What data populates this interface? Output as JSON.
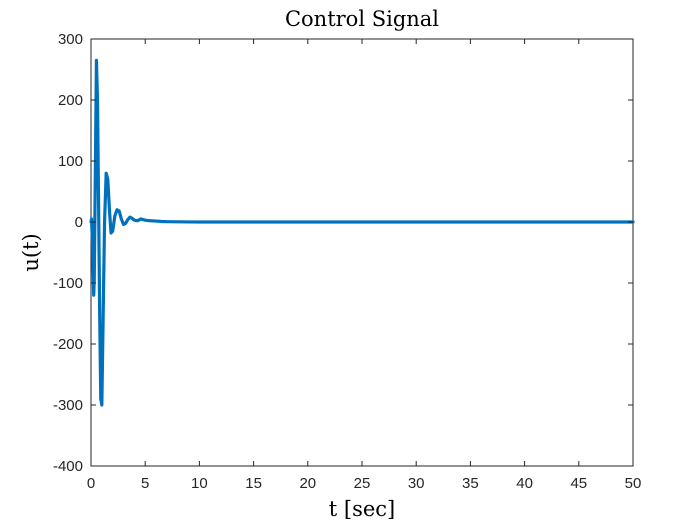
{
  "chart_data": {
    "type": "line",
    "title": "Control Signal",
    "xlabel": "t [sec]",
    "ylabel": "u(t)",
    "xlim": [
      0,
      50
    ],
    "ylim": [
      -400,
      300
    ],
    "xticks": [
      0,
      5,
      10,
      15,
      20,
      25,
      30,
      35,
      40,
      45,
      50
    ],
    "yticks": [
      -400,
      -300,
      -200,
      -100,
      0,
      100,
      200,
      300
    ],
    "grid": false,
    "line_color": "#0072BD",
    "series": [
      {
        "x": [
          0,
          0.05,
          0.15,
          0.25,
          0.3,
          0.4,
          0.5,
          0.6,
          0.7,
          0.8,
          0.9,
          1.0,
          1.1,
          1.25,
          1.4,
          1.55,
          1.7,
          1.85,
          2.0,
          2.2,
          2.4,
          2.6,
          2.8,
          3.0,
          3.2,
          3.4,
          3.6,
          3.8,
          4.0,
          4.3,
          4.6,
          5.0,
          5.5,
          6.0,
          6.5,
          7.0,
          8.0,
          9.0,
          10,
          15,
          20,
          30,
          40,
          50
        ],
        "y": [
          0,
          5,
          -40,
          -120,
          -95,
          80,
          265,
          200,
          30,
          -150,
          -290,
          -300,
          -180,
          0,
          80,
          70,
          20,
          -18,
          -15,
          10,
          20,
          18,
          5,
          -4,
          -2,
          4,
          8,
          6,
          3,
          2,
          5,
          3,
          2,
          1.5,
          0.8,
          0.5,
          0.3,
          0.1,
          0,
          0,
          0,
          0,
          0,
          0
        ]
      }
    ]
  }
}
